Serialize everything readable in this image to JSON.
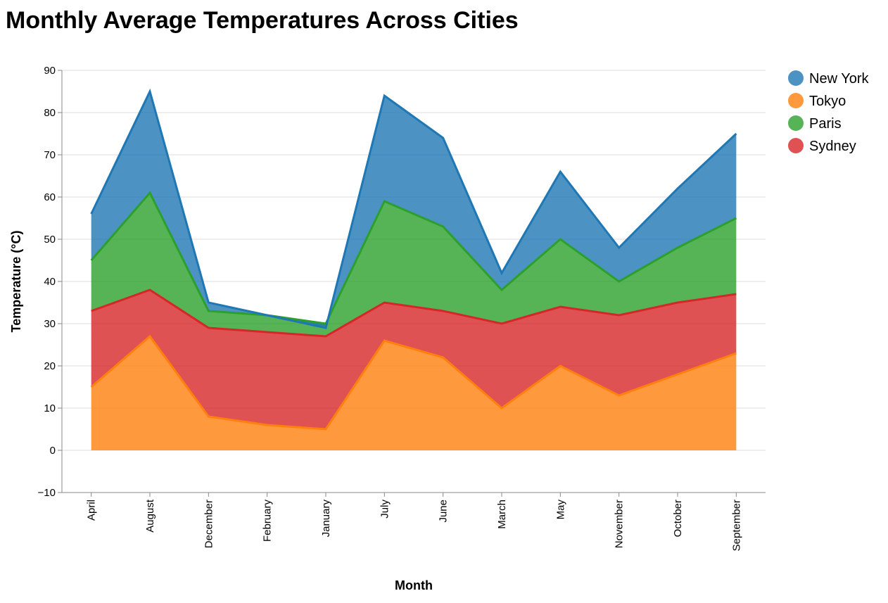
{
  "chart_data": {
    "type": "area",
    "stacked": true,
    "title": "Monthly Average Temperatures Across Cities",
    "xlabel": "Month",
    "ylabel": "Temperature (°C)",
    "ylim": [
      -10,
      90
    ],
    "yticks": [
      -10,
      0,
      10,
      20,
      30,
      40,
      50,
      60,
      70,
      80,
      90
    ],
    "grid": true,
    "legend_position": "top-right",
    "categories": [
      "April",
      "August",
      "December",
      "February",
      "January",
      "July",
      "June",
      "March",
      "May",
      "November",
      "October",
      "September"
    ],
    "series": [
      {
        "name": "New York",
        "color": "#1f77b4",
        "values": [
          11,
          24,
          2,
          0,
          -1,
          25,
          21,
          4,
          16,
          8,
          14,
          20
        ]
      },
      {
        "name": "Tokyo",
        "color": "#ff7f0e",
        "values": [
          15,
          27,
          8,
          6,
          5,
          26,
          22,
          10,
          20,
          13,
          18,
          23
        ]
      },
      {
        "name": "Paris",
        "color": "#2ca02c",
        "values": [
          12,
          23,
          4,
          4,
          3,
          24,
          20,
          8,
          16,
          8,
          13,
          18
        ]
      },
      {
        "name": "Sydney",
        "color": "#d62728",
        "values": [
          18,
          11,
          21,
          22,
          22,
          9,
          11,
          20,
          14,
          19,
          17,
          14
        ]
      }
    ],
    "stack_order": [
      "Tokyo",
      "Sydney",
      "Paris",
      "New York"
    ]
  }
}
